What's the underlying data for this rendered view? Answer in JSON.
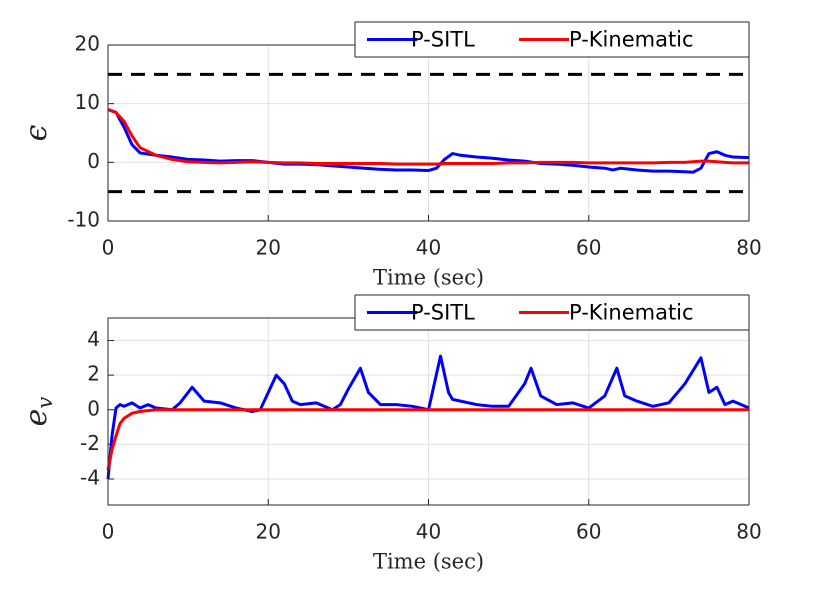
{
  "chart_data": [
    {
      "type": "line",
      "ylabel": "ϵ",
      "xlabel": "Time (sec)",
      "x": [
        0,
        1,
        2,
        3,
        4,
        6,
        8,
        10,
        12,
        14,
        16,
        18,
        20,
        22,
        24,
        26,
        28,
        30,
        32,
        34,
        36,
        38,
        40,
        41,
        42,
        43,
        44,
        46,
        48,
        50,
        52,
        54,
        56,
        58,
        60,
        62,
        63,
        64,
        66,
        68,
        70,
        72,
        73,
        74,
        75,
        76,
        77,
        78,
        80
      ],
      "series": [
        {
          "name": "P-SITL",
          "color": "#0000ff",
          "values": [
            9,
            8.5,
            6,
            3,
            1.6,
            1.2,
            0.9,
            0.5,
            0.4,
            0.2,
            0.3,
            0.3,
            0,
            -0.3,
            -0.3,
            -0.4,
            -0.6,
            -0.8,
            -1.0,
            -1.2,
            -1.3,
            -1.3,
            -1.4,
            -1.0,
            0.5,
            1.5,
            1.2,
            0.9,
            0.7,
            0.4,
            0.2,
            -0.2,
            -0.3,
            -0.5,
            -0.8,
            -1.0,
            -1.3,
            -1.0,
            -1.3,
            -1.5,
            -1.5,
            -1.6,
            -1.7,
            -1.0,
            1.5,
            1.8,
            1.2,
            0.9,
            0.8
          ]
        },
        {
          "name": "P-Kinematic",
          "color": "#ff0000",
          "values": [
            9,
            8.5,
            7,
            4.5,
            2.5,
            1.2,
            0.5,
            0.1,
            0,
            -0.1,
            0,
            0.1,
            0,
            -0.1,
            -0.1,
            -0.2,
            -0.2,
            -0.2,
            -0.2,
            -0.2,
            -0.3,
            -0.3,
            -0.3,
            -0.3,
            -0.2,
            -0.2,
            -0.2,
            -0.2,
            -0.2,
            -0.1,
            -0.1,
            0,
            0,
            0,
            -0.1,
            -0.1,
            -0.1,
            -0.1,
            -0.1,
            -0.1,
            0,
            0,
            0.1,
            0.2,
            0.2,
            0.1,
            0,
            -0.1,
            -0.1
          ]
        }
      ],
      "hlines": [
        15,
        -5
      ],
      "hline_color": "#000000",
      "xlim": [
        0,
        80
      ],
      "xticks": [
        0,
        20,
        40,
        60,
        80
      ],
      "ylim": [
        -10,
        20
      ],
      "yticks": [
        -10,
        0,
        10,
        20
      ],
      "grid": true,
      "legend": "north east"
    },
    {
      "type": "line",
      "ylabel": "e",
      "ylabel_subscript": "v",
      "xlabel": "Time (sec)",
      "x": [
        0,
        0.5,
        1,
        1.5,
        2,
        3,
        4,
        5,
        6,
        8,
        9,
        10.5,
        12,
        14,
        16,
        18,
        19,
        20,
        21,
        22,
        23,
        24,
        26,
        28,
        29,
        30,
        31.5,
        32.5,
        34,
        36,
        38,
        40,
        41.5,
        42.5,
        43,
        44,
        46,
        48,
        50,
        52,
        52.8,
        54,
        56,
        58,
        60,
        62,
        63.5,
        64.5,
        66,
        68,
        70,
        72,
        74,
        75,
        76,
        77,
        78,
        80
      ],
      "series": [
        {
          "name": "P-SITL",
          "color": "#0000ff",
          "values": [
            -4,
            -1.5,
            0.1,
            0.3,
            0.2,
            0.4,
            0.1,
            0.3,
            0.1,
            0,
            0.4,
            1.3,
            0.5,
            0.4,
            0.1,
            -0.1,
            0,
            1.0,
            2.0,
            1.5,
            0.5,
            0.3,
            0.4,
            0,
            0.3,
            1.2,
            2.4,
            1.0,
            0.3,
            0.3,
            0.2,
            0,
            3.1,
            1.0,
            0.6,
            0.5,
            0.3,
            0.2,
            0.2,
            1.5,
            2.4,
            0.8,
            0.3,
            0.4,
            0.1,
            0.8,
            2.4,
            0.8,
            0.5,
            0.2,
            0.4,
            1.5,
            3.0,
            1.0,
            1.3,
            0.3,
            0.5,
            0.1
          ]
        },
        {
          "name": "P-Kinematic",
          "color": "#ff0000",
          "values": [
            -3.5,
            -2.3,
            -1.5,
            -0.8,
            -0.5,
            -0.2,
            -0.1,
            -0.05,
            0,
            0,
            0,
            0,
            0,
            0,
            0,
            0,
            0,
            0,
            0,
            0,
            0,
            0,
            0,
            0,
            0,
            0,
            0,
            0,
            0,
            0,
            0,
            0,
            0,
            0,
            0,
            0,
            0,
            0,
            0,
            0,
            0,
            0,
            0,
            0,
            0,
            0,
            0,
            0,
            0,
            0,
            0,
            0,
            0,
            0,
            0,
            0,
            0,
            0
          ]
        }
      ],
      "xlim": [
        0,
        80
      ],
      "xticks": [
        0,
        20,
        40,
        60,
        80
      ],
      "ylim": [
        -5.5,
        5.3
      ],
      "yticks": [
        -4,
        -2,
        0,
        2,
        4
      ],
      "grid": true,
      "legend": "north east"
    }
  ]
}
